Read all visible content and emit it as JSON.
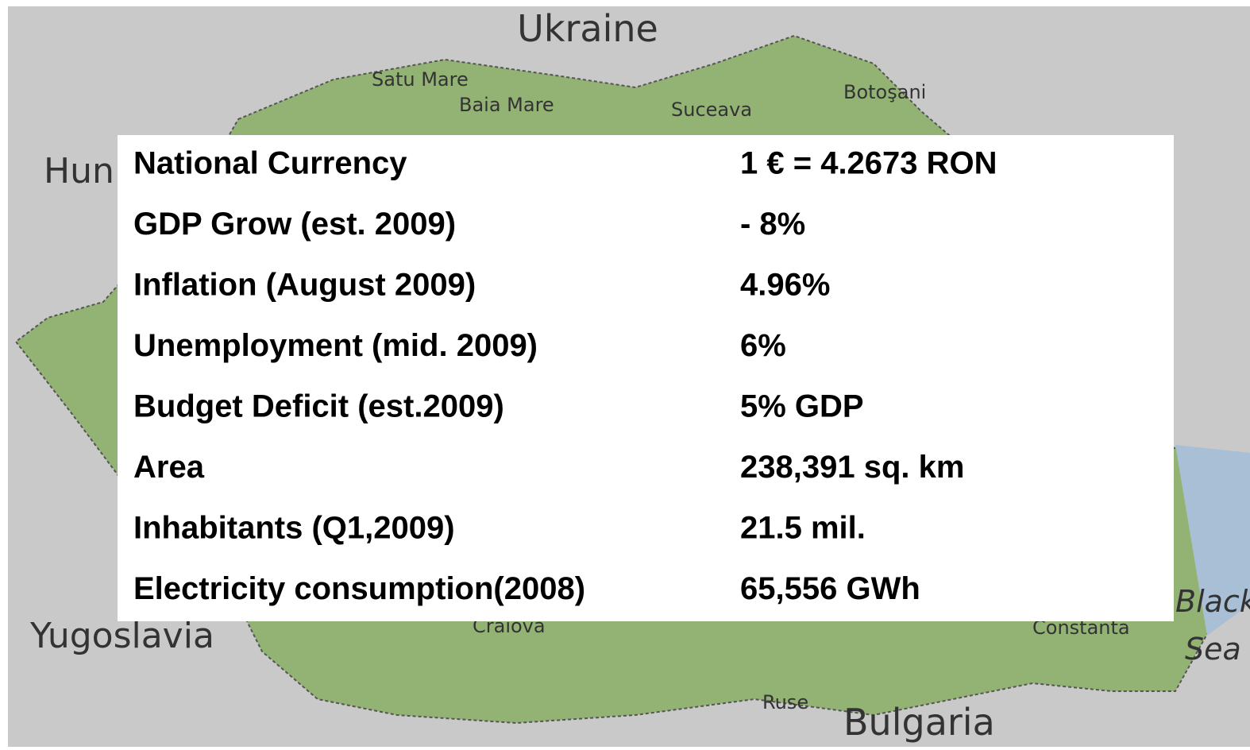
{
  "map": {
    "labels": {
      "ukraine": "Ukraine",
      "satu_mare": "Satu Mare",
      "baia_mare": "Baia Mare",
      "suceava": "Suceava",
      "botosani": "Botoşani",
      "hungary": "Hun",
      "yugoslavia": "Yugoslavia",
      "craiova": "Craiova",
      "constanta": "Constanta",
      "black": "Black",
      "sea": "Sea",
      "ruse": "Ruse",
      "bulgaria": "Bulgaria"
    }
  },
  "table": {
    "rows": [
      [
        "National Currency",
        "1 € = 4.2673 RON"
      ],
      [
        "GDP Grow (est. 2009)",
        "- 8%"
      ],
      [
        "Inflation (August 2009)",
        "4.96%"
      ],
      [
        "Unemployment (mid. 2009)",
        "6%"
      ],
      [
        "Budget Deficit (est.2009)",
        "5% GDP"
      ],
      [
        "Area",
        "238,391 sq. km"
      ],
      [
        "Inhabitants (Q1,2009)",
        "21.5 mil."
      ],
      [
        "Electricity consumption(2008)",
        "65,556 GWh"
      ]
    ]
  }
}
